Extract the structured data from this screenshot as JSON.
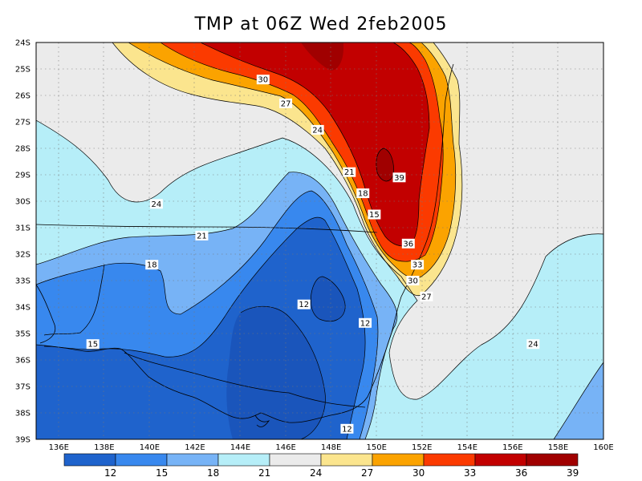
{
  "title": "TMP at 06Z Wed 2feb2005",
  "map": {
    "lat_ticks": [
      "24S",
      "25S",
      "26S",
      "27S",
      "28S",
      "29S",
      "30S",
      "31S",
      "32S",
      "33S",
      "34S",
      "35S",
      "36S",
      "37S",
      "38S",
      "39S"
    ],
    "lon_ticks": [
      "136E",
      "138E",
      "140E",
      "142E",
      "144E",
      "146E",
      "148E",
      "150E",
      "152E",
      "154E",
      "156E",
      "158E",
      "160E"
    ],
    "contour_labels": [
      {
        "text": "30",
        "lon": 145.0,
        "lat": -25.4
      },
      {
        "text": "27",
        "lon": 146.0,
        "lat": -26.3
      },
      {
        "text": "24",
        "lon": 147.4,
        "lat": -27.3
      },
      {
        "text": "24",
        "lon": 140.3,
        "lat": -30.1
      },
      {
        "text": "21",
        "lon": 148.8,
        "lat": -28.9
      },
      {
        "text": "18",
        "lon": 149.4,
        "lat": -29.7
      },
      {
        "text": "15",
        "lon": 149.9,
        "lat": -30.5
      },
      {
        "text": "21",
        "lon": 142.3,
        "lat": -31.3
      },
      {
        "text": "18",
        "lon": 140.1,
        "lat": -32.4
      },
      {
        "text": "39",
        "lon": 151.0,
        "lat": -29.1
      },
      {
        "text": "36",
        "lon": 151.4,
        "lat": -31.6
      },
      {
        "text": "33",
        "lon": 151.8,
        "lat": -32.4
      },
      {
        "text": "30",
        "lon": 151.6,
        "lat": -33.0
      },
      {
        "text": "27",
        "lon": 152.2,
        "lat": -33.6
      },
      {
        "text": "12",
        "lon": 146.8,
        "lat": -33.9
      },
      {
        "text": "12",
        "lon": 149.5,
        "lat": -34.6
      },
      {
        "text": "15",
        "lon": 137.5,
        "lat": -35.4
      },
      {
        "text": "24",
        "lon": 156.9,
        "lat": -35.4
      },
      {
        "text": "12",
        "lon": 148.7,
        "lat": -38.6
      }
    ]
  },
  "colorbar": {
    "colors": [
      "#1f63cc",
      "#3888ee",
      "#77b3f6",
      "#b6eef8",
      "#ebebeb",
      "#fbe58e",
      "#fba300",
      "#fb3a00",
      "#c20000",
      "#a00000"
    ],
    "labels": [
      "12",
      "15",
      "18",
      "21",
      "24",
      "27",
      "30",
      "33",
      "36",
      "39"
    ]
  }
}
